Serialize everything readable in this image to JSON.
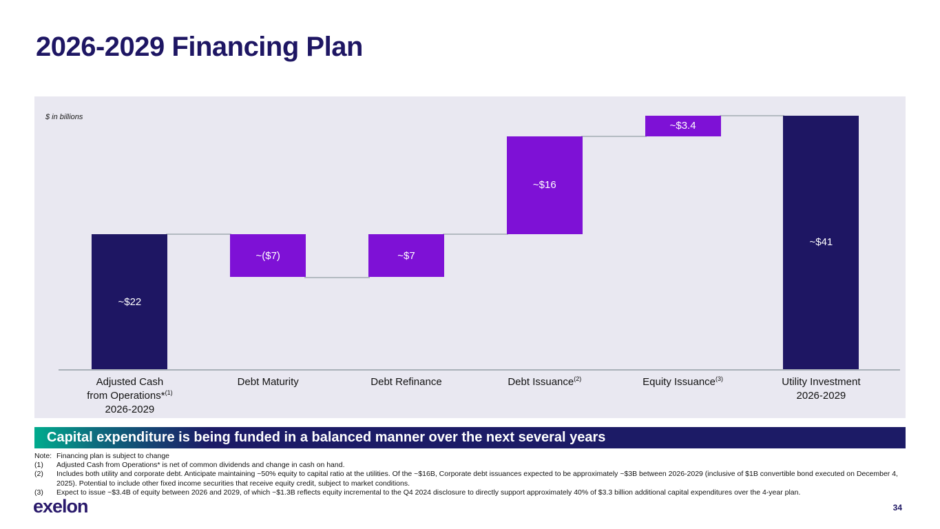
{
  "slide": {
    "title": "2026-2029 Financing Plan",
    "units_label": "$ in billions",
    "banner": "Capital expenditure is being funded in a balanced manner over the next several years",
    "logo_text": "exelon",
    "page_number": "34"
  },
  "notes": [
    {
      "prefix": "Note:",
      "text": "Financing plan is subject to change"
    },
    {
      "prefix": "(1)",
      "text": "Adjusted Cash from Operations* is net of common dividends and change in cash on hand."
    },
    {
      "prefix": "(2)",
      "text": "Includes both utility and corporate debt. Anticipate maintaining ~50% equity to capital ratio at the utilities. Of the ~$16B, Corporate debt issuances expected to be approximately ~$3B between 2026-2029 (inclusive of $1B convertible bond executed on December 4, 2025). Potential to include other fixed income securities that receive equity credit, subject to market conditions."
    },
    {
      "prefix": "(3)",
      "text": "Expect to issue ~$3.4B of equity between 2026 and 2029, of which ~$1.3B reflects equity incremental to the Q4 2024 disclosure to directly support approximately 40% of $3.3 billion additional capital expenditures over the 4-year plan."
    }
  ],
  "chart_data": {
    "type": "bar",
    "subtype": "waterfall",
    "title": "2026-2029 Financing Plan",
    "units": "$ in billions",
    "ylim": [
      0,
      41.4
    ],
    "grid": false,
    "legend": "none",
    "colors": {
      "navy": "#1e1663",
      "purple": "#7e11d6"
    },
    "categories": [
      "Adjusted Cash from Operations*(1) 2026-2029",
      "Debt Maturity",
      "Debt Refinance",
      "Debt Issuance(2)",
      "Equity Issuance(3)",
      "Utility Investment 2026-2029"
    ],
    "bars": [
      {
        "label_lines": [
          {
            "t": "Adjusted Cash"
          },
          {
            "t": "from Operations*",
            "sup": "(1)"
          },
          {
            "t": "2026-2029"
          }
        ],
        "value": 22,
        "display": "~$22",
        "start": 0,
        "end": 22,
        "color": "navy"
      },
      {
        "label_lines": [
          {
            "t": "Debt Maturity"
          }
        ],
        "value": -7,
        "display": "~($7)",
        "start": 22,
        "end": 15,
        "color": "purple"
      },
      {
        "label_lines": [
          {
            "t": "Debt Refinance"
          }
        ],
        "value": 7,
        "display": "~$7",
        "start": 15,
        "end": 22,
        "color": "purple"
      },
      {
        "label_lines": [
          {
            "t": "Debt Issuance",
            "sup": "(2)"
          }
        ],
        "value": 16,
        "display": "~$16",
        "start": 22,
        "end": 38,
        "color": "purple"
      },
      {
        "label_lines": [
          {
            "t": "Equity Issuance",
            "sup": "(3)"
          }
        ],
        "value": 3.4,
        "display": "~$3.4",
        "start": 38,
        "end": 41.4,
        "color": "purple"
      },
      {
        "label_lines": [
          {
            "t": "Utility Investment"
          },
          {
            "t": "2026-2029"
          }
        ],
        "value": 41,
        "display": "~$41",
        "start": 0,
        "end": 41.4,
        "color": "navy"
      }
    ]
  }
}
